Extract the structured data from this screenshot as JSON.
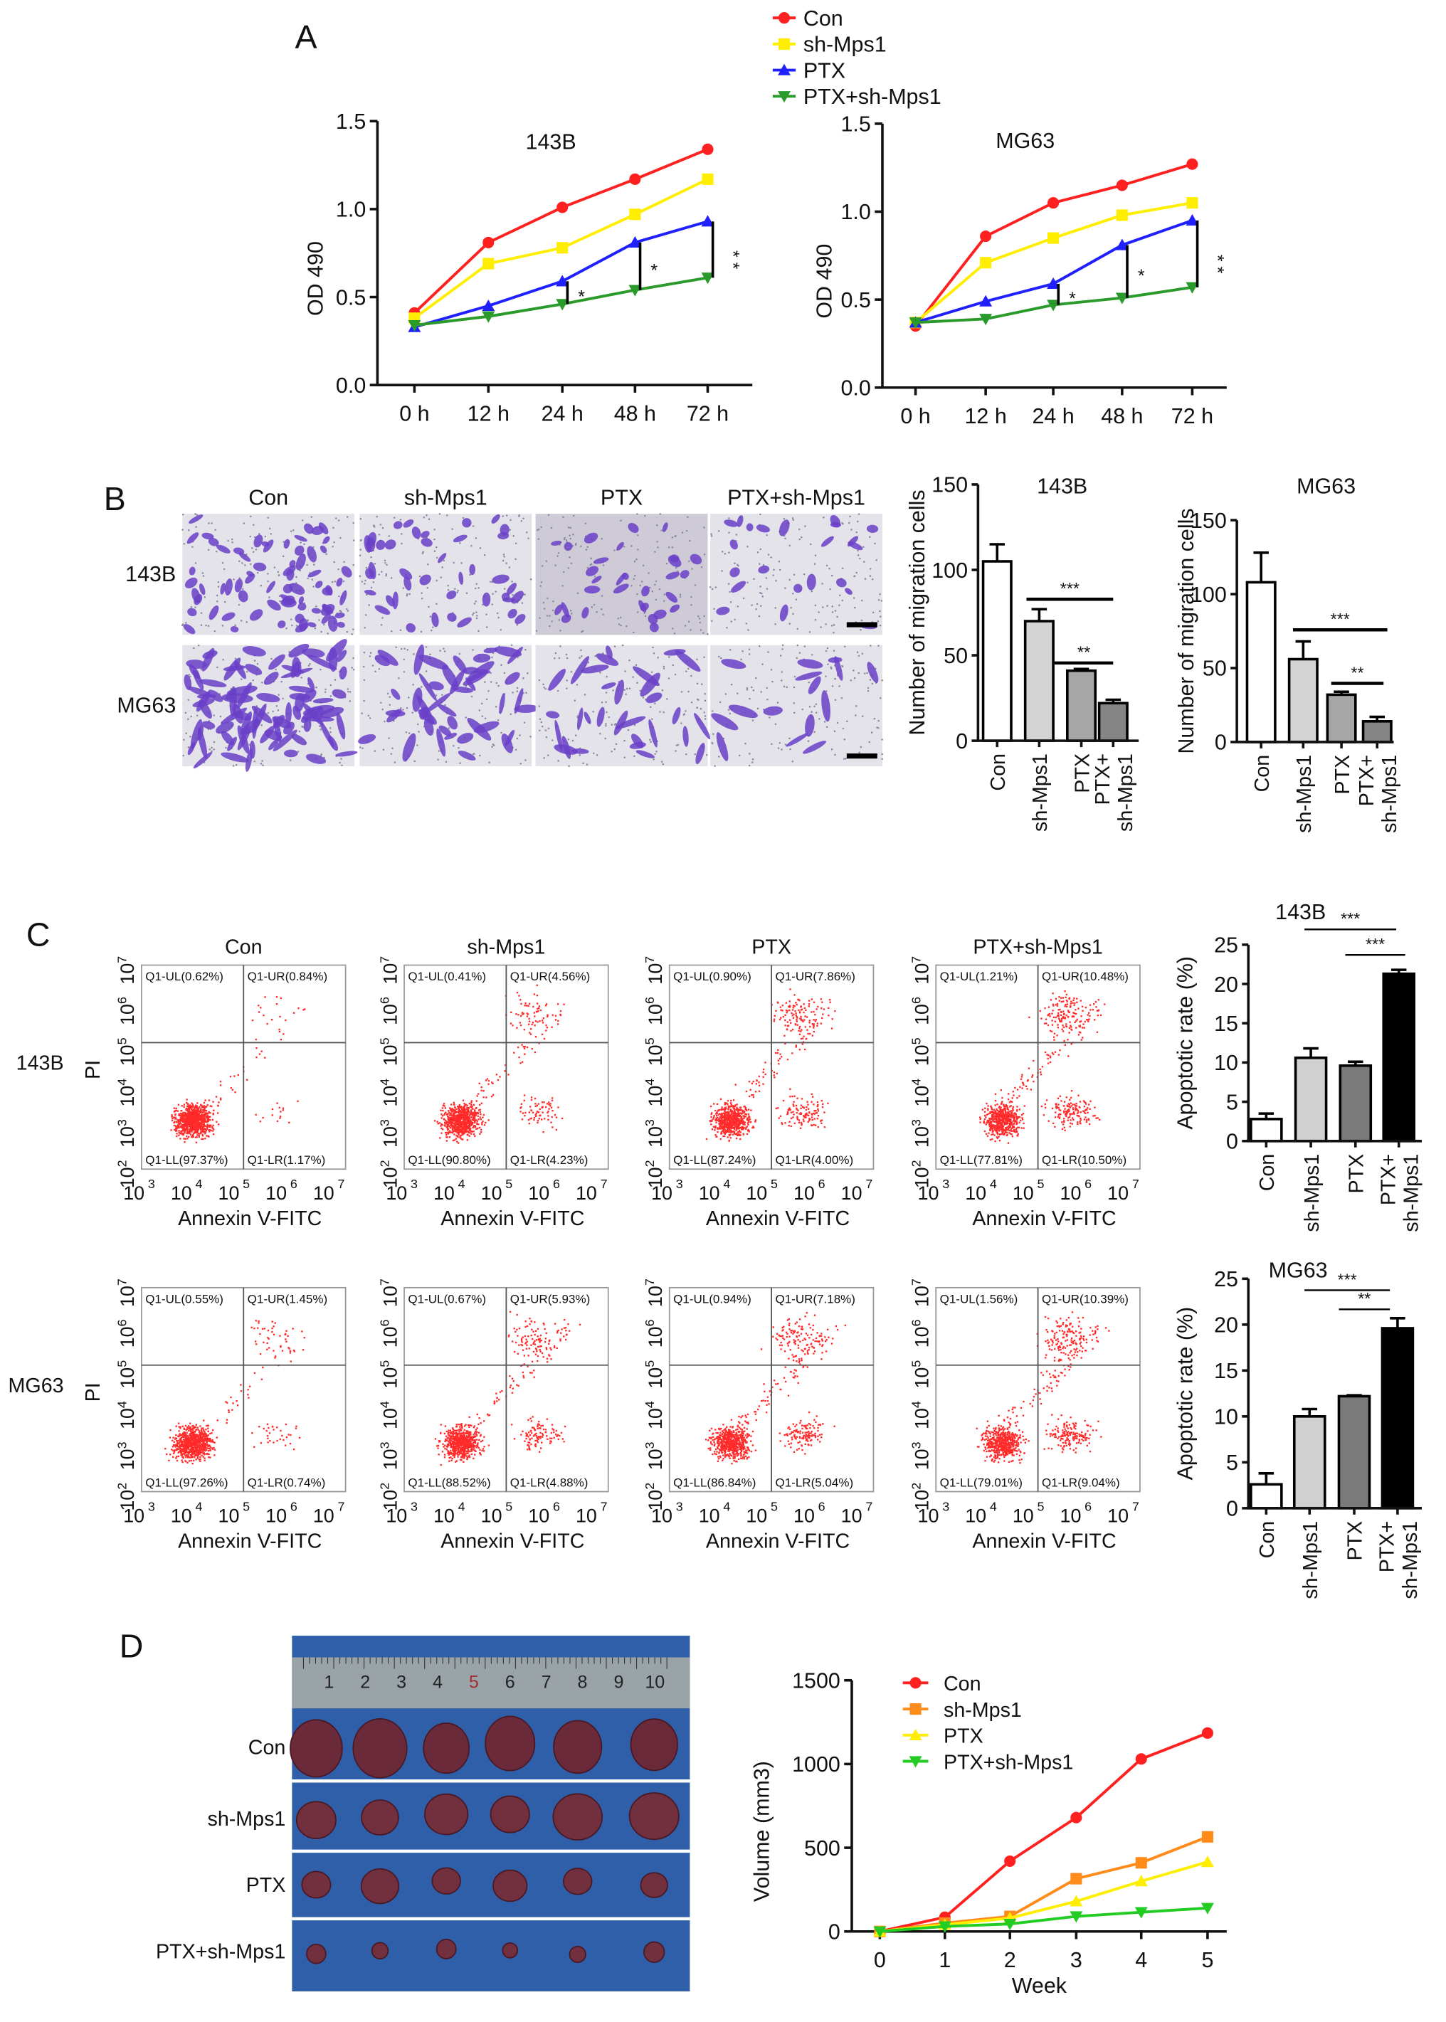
{
  "panel_labels": [
    "A",
    "B",
    "C",
    "D"
  ],
  "groups": [
    "Con",
    "sh-Mps1",
    "PTX",
    "PTX+sh-Mps1"
  ],
  "colors": {
    "con": "#ff2020",
    "sh": "#ffee00",
    "ptx": "#2020ff",
    "combo": "#2a9a2a",
    "orange": "#ff8c1a",
    "green_d": "#22cc22",
    "mouse_bg": "#2f5fa8"
  },
  "chart_data": [
    {
      "id": "A-143B",
      "type": "line",
      "title": "143B",
      "xlabel": "",
      "ylabel": "OD 490",
      "categories": [
        "0 h",
        "12 h",
        "24 h",
        "48 h",
        "72 h"
      ],
      "ylim": [
        0,
        1.5
      ],
      "yticks": [
        "0.0",
        "0.5",
        "1.0",
        "1.5"
      ],
      "series": [
        {
          "name": "Con",
          "values": [
            0.41,
            0.81,
            1.01,
            1.17,
            1.34
          ]
        },
        {
          "name": "sh-Mps1",
          "values": [
            0.38,
            0.69,
            0.78,
            0.97,
            1.17
          ]
        },
        {
          "name": "PTX",
          "values": [
            0.33,
            0.45,
            0.59,
            0.81,
            0.93
          ]
        },
        {
          "name": "PTX+sh-Mps1",
          "values": [
            0.34,
            0.39,
            0.46,
            0.54,
            0.61
          ]
        }
      ],
      "significance": [
        "*",
        "*",
        "* *"
      ],
      "legend": "top"
    },
    {
      "id": "A-MG63",
      "type": "line",
      "title": "MG63",
      "xlabel": "",
      "ylabel": "OD 490",
      "categories": [
        "0 h",
        "12 h",
        "24 h",
        "48 h",
        "72 h"
      ],
      "ylim": [
        0,
        1.5
      ],
      "yticks": [
        "0.0",
        "0.5",
        "1.0",
        "1.5"
      ],
      "series": [
        {
          "name": "Con",
          "values": [
            0.35,
            0.86,
            1.05,
            1.15,
            1.27
          ]
        },
        {
          "name": "sh-Mps1",
          "values": [
            0.37,
            0.71,
            0.85,
            0.98,
            1.05
          ]
        },
        {
          "name": "PTX",
          "values": [
            0.37,
            0.49,
            0.59,
            0.81,
            0.95
          ]
        },
        {
          "name": "PTX+sh-Mps1",
          "values": [
            0.37,
            0.39,
            0.47,
            0.51,
            0.57
          ]
        }
      ],
      "significance": [
        "*",
        "*",
        "* *"
      ]
    },
    {
      "id": "B-143B",
      "type": "bar",
      "title": "143B",
      "ylabel": "Number of migration cells",
      "categories": [
        "Con",
        "sh-Mps1",
        "PTX",
        "PTX+ sh-Mps1"
      ],
      "values": [
        105,
        70,
        41,
        22
      ],
      "errors": [
        10,
        7,
        1,
        2
      ],
      "ylim": [
        0,
        150
      ],
      "yticks": [
        "0",
        "50",
        "100",
        "150"
      ],
      "significance": [
        "***",
        "**"
      ]
    },
    {
      "id": "B-MG63",
      "type": "bar",
      "title": "MG63",
      "ylabel": "Number of migration cells",
      "categories": [
        "Con",
        "sh-Mps1",
        "PTX",
        "PTX+ sh-Mps1"
      ],
      "values": [
        108,
        56,
        32,
        14
      ],
      "errors": [
        20,
        12,
        2,
        3
      ],
      "ylim": [
        0,
        150
      ],
      "yticks": [
        "0",
        "50",
        "100",
        "150"
      ],
      "significance": [
        "***",
        "**"
      ]
    },
    {
      "id": "C-143B",
      "type": "bar",
      "title": "143B",
      "ylabel": "Apoptotic rate (%)",
      "categories": [
        "Con",
        "sh-Mps1",
        "PTX",
        "PTX+ sh-Mps1"
      ],
      "values": [
        2.8,
        10.6,
        9.6,
        21.3
      ],
      "errors": [
        0.7,
        1.2,
        0.5,
        0.5
      ],
      "ylim": [
        0,
        25
      ],
      "yticks": [
        "0",
        "5",
        "10",
        "15",
        "20",
        "25"
      ],
      "significance": [
        "***",
        "***"
      ]
    },
    {
      "id": "C-MG63",
      "type": "bar",
      "title": "MG63",
      "ylabel": "Apoptotic rate (%)",
      "categories": [
        "Con",
        "sh-Mps1",
        "PTX",
        "PTX+ sh-Mps1"
      ],
      "values": [
        2.6,
        10.0,
        12.2,
        19.6
      ],
      "errors": [
        1.2,
        0.8,
        0.1,
        1.1
      ],
      "ylim": [
        0,
        25
      ],
      "yticks": [
        "0",
        "5",
        "10",
        "15",
        "20",
        "25"
      ],
      "significance": [
        "***",
        "**"
      ]
    },
    {
      "id": "D-volume",
      "type": "line",
      "title": "",
      "xlabel": "Week",
      "ylabel": "Volume (mm3)",
      "categories": [
        "0",
        "1",
        "2",
        "3",
        "4",
        "5"
      ],
      "ylim": [
        0,
        1500
      ],
      "yticks": [
        "0",
        "500",
        "1000",
        "1500"
      ],
      "series": [
        {
          "name": "Con",
          "values": [
            0,
            85,
            420,
            680,
            1030,
            1185
          ]
        },
        {
          "name": "sh-Mps1",
          "values": [
            0,
            50,
            90,
            315,
            410,
            565
          ]
        },
        {
          "name": "PTX",
          "values": [
            0,
            40,
            80,
            180,
            300,
            415
          ]
        },
        {
          "name": "PTX+sh-Mps1",
          "values": [
            0,
            30,
            45,
            90,
            115,
            140
          ]
        }
      ],
      "legend": "top-left"
    }
  ],
  "transwell": {
    "columns": [
      "Con",
      "sh-Mps1",
      "PTX",
      "PTX+sh-Mps1"
    ],
    "rows": [
      "143B",
      "MG63"
    ]
  },
  "flow": {
    "columns": [
      "Con",
      "sh-Mps1",
      "PTX",
      "PTX+sh-Mps1"
    ],
    "rows": [
      "143B",
      "MG63"
    ],
    "ylabel": "PI",
    "xlabel": "Annexin V-FITC",
    "xticks": [
      "10",
      "10",
      "10",
      "10",
      "10"
    ],
    "xexp": [
      "3",
      "4",
      "5",
      "6",
      "7"
    ],
    "yexp": [
      "2",
      "3",
      "4",
      "5",
      "6",
      "7"
    ],
    "quadrants": [
      [
        [
          "Q1-UL(0.62%)",
          "Q1-UR(0.84%)",
          "Q1-LL(97.37%)",
          "Q1-LR(1.17%)"
        ],
        [
          "Q1-UL(0.41%)",
          "Q1-UR(4.56%)",
          "Q1-LL(90.80%)",
          "Q1-LR(4.23%)"
        ],
        [
          "Q1-UL(0.90%)",
          "Q1-UR(7.86%)",
          "Q1-LL(87.24%)",
          "Q1-LR(4.00%)"
        ],
        [
          "Q1-UL(1.21%)",
          "Q1-UR(10.48%)",
          "Q1-LL(77.81%)",
          "Q1-LR(10.50%)"
        ]
      ],
      [
        [
          "Q1-UL(0.55%)",
          "Q1-UR(1.45%)",
          "Q1-LL(97.26%)",
          "Q1-LR(0.74%)"
        ],
        [
          "Q1-UL(0.67%)",
          "Q1-UR(5.93%)",
          "Q1-LL(88.52%)",
          "Q1-LR(4.88%)"
        ],
        [
          "Q1-UL(0.94%)",
          "Q1-UR(7.18%)",
          "Q1-LL(86.84%)",
          "Q1-LR(5.04%)"
        ],
        [
          "Q1-UL(1.56%)",
          "Q1-UR(10.39%)",
          "Q1-LL(79.01%)",
          "Q1-LR(9.04%)"
        ]
      ]
    ]
  },
  "tumor": {
    "rows": [
      "Con",
      "sh-Mps1",
      "PTX",
      "PTX+sh-Mps1"
    ],
    "ruler": [
      "1",
      "2",
      "3",
      "4",
      "5",
      "6",
      "7",
      "8",
      "9",
      "10"
    ]
  }
}
